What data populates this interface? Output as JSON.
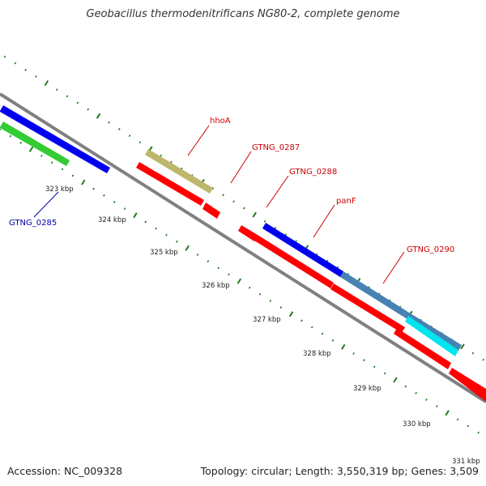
{
  "title": "Geobacillus thermodenitrificans NG80-2, complete genome",
  "footer": {
    "accession": "Accession: NC_009328",
    "info": "Topology: circular; Length: 3,550,319 bp; Genes: 3,509"
  },
  "ticks": [
    "323 kbp",
    "324 kbp",
    "325 kbp",
    "326 kbp",
    "327 kbp",
    "328 kbp",
    "329 kbp",
    "330 kbp",
    "331 kbp"
  ],
  "genes": [
    {
      "name": "GTNG_0285",
      "color": "#0000aa"
    },
    {
      "name": "hhoA",
      "color": "#cc0000"
    },
    {
      "name": "GTNG_0287",
      "color": "#cc0000"
    },
    {
      "name": "GTNG_0288",
      "color": "#cc0000"
    },
    {
      "name": "panF",
      "color": "#cc0000"
    },
    {
      "name": "GTNG_0290",
      "color": "#cc0000"
    }
  ],
  "colors": {
    "backbone": "#808080",
    "tick": "#1e7a1e",
    "cds_forward": "#0000ee",
    "cds_reverse": "#ff0000",
    "gene_green": "#33cc33",
    "gene_khaki": "#bdb76b",
    "gene_steelblue": "#4682b4",
    "gene_cyan": "#00e5ee"
  }
}
